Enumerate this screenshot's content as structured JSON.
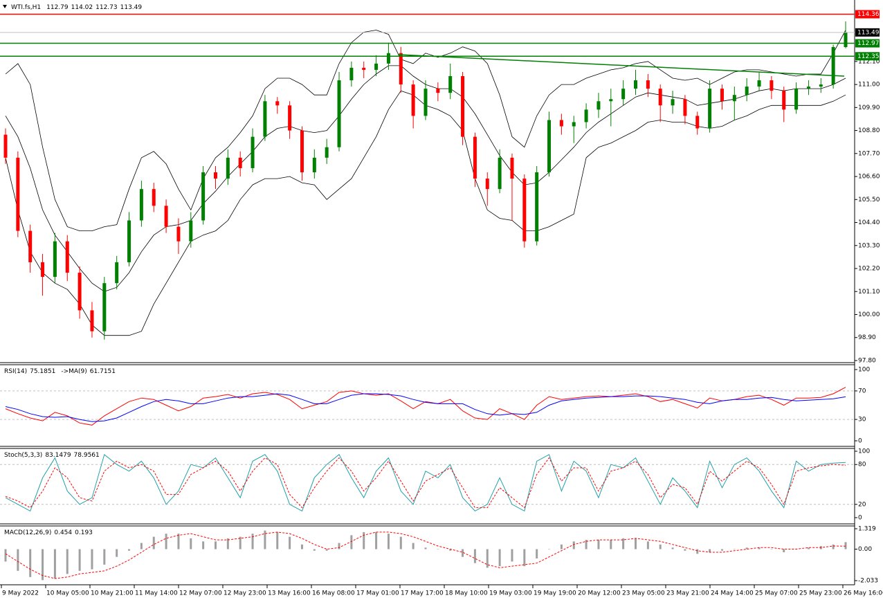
{
  "chart_data": [
    {
      "type": "candlestick",
      "title": "WTI.fs,H1",
      "open": [
        108.6,
        107.5,
        104.0,
        102.5,
        101.8,
        103.5,
        102.0,
        100.2,
        99.2,
        101.5,
        102.5,
        104.5,
        106.0,
        105.2,
        104.2,
        103.5,
        104.5,
        106.8,
        106.5,
        107.5,
        107.0,
        108.5,
        110.2,
        110.0,
        108.8,
        106.8,
        107.5,
        108.0,
        111.2,
        111.8,
        111.7,
        112.0,
        112.5,
        111.0,
        109.5,
        110.8,
        110.6,
        111.4,
        108.5,
        106.5,
        106.0,
        107.5,
        106.5,
        103.5,
        106.8,
        109.3,
        109.0,
        109.2,
        109.8,
        110.2,
        110.3,
        110.8,
        111.2,
        110.8,
        110.0,
        110.3,
        109.5,
        108.9,
        110.8,
        110.2,
        110.5,
        110.9,
        111.2,
        110.7,
        109.8,
        110.8,
        110.9,
        111.0,
        112.79
      ],
      "high": [
        108.9,
        107.8,
        104.3,
        102.9,
        103.9,
        103.8,
        102.3,
        100.6,
        101.8,
        102.8,
        104.9,
        106.4,
        106.3,
        105.5,
        104.6,
        104.9,
        107.1,
        107.1,
        107.9,
        107.8,
        108.9,
        110.5,
        110.4,
        110.2,
        109.0,
        107.9,
        108.4,
        111.6,
        112.1,
        112.1,
        112.4,
        113.0,
        112.8,
        111.2,
        111.2,
        111.1,
        112.0,
        111.6,
        108.7,
        106.8,
        107.9,
        107.7,
        106.7,
        107.1,
        109.7,
        109.6,
        109.5,
        110.1,
        110.6,
        110.8,
        111.2,
        111.7,
        111.5,
        111.0,
        110.7,
        110.5,
        109.7,
        111.2,
        111.0,
        110.9,
        111.3,
        111.6,
        111.4,
        110.9,
        111.1,
        111.2,
        111.3,
        112.9,
        114.02
      ],
      "low": [
        107.2,
        103.7,
        102.0,
        100.9,
        101.5,
        101.6,
        99.8,
        98.9,
        98.8,
        101.2,
        102.3,
        104.2,
        104.9,
        103.9,
        102.9,
        103.2,
        104.3,
        106.0,
        106.2,
        106.6,
        106.8,
        108.3,
        109.6,
        108.4,
        106.4,
        106.5,
        107.2,
        107.8,
        110.9,
        111.3,
        111.4,
        111.7,
        110.6,
        108.9,
        109.3,
        110.2,
        110.3,
        108.1,
        106.1,
        105.2,
        105.8,
        104.5,
        103.2,
        103.3,
        106.6,
        108.6,
        108.2,
        108.9,
        109.4,
        109.0,
        110.0,
        110.5,
        110.4,
        109.2,
        109.6,
        109.1,
        108.6,
        108.7,
        109.8,
        109.3,
        110.2,
        110.7,
        110.3,
        109.2,
        109.6,
        110.5,
        110.6,
        110.8,
        112.73
      ],
      "close": [
        107.5,
        104.0,
        102.5,
        101.8,
        103.5,
        102.0,
        100.2,
        99.2,
        101.5,
        102.5,
        104.5,
        106.0,
        105.2,
        104.2,
        103.5,
        104.5,
        106.8,
        106.5,
        107.5,
        107.0,
        108.5,
        110.2,
        110.0,
        108.8,
        106.8,
        107.5,
        108.0,
        111.2,
        111.8,
        111.7,
        112.0,
        112.5,
        111.0,
        109.5,
        110.8,
        110.6,
        111.4,
        108.5,
        106.5,
        106.0,
        107.5,
        106.5,
        103.5,
        106.8,
        109.3,
        109.0,
        109.2,
        109.8,
        110.2,
        110.3,
        110.8,
        111.2,
        110.8,
        110.0,
        110.3,
        109.5,
        108.9,
        110.8,
        110.2,
        110.5,
        110.9,
        111.2,
        110.7,
        109.8,
        110.8,
        110.9,
        111.0,
        112.79,
        113.49
      ],
      "up_color": "#008000",
      "down_color": "#ff0000",
      "overlays": [
        {
          "color": "#000000",
          "values": [
            111.5,
            112.0,
            111.0,
            108.0,
            105.5,
            104.2,
            104.0,
            104.0,
            104.2,
            104.3,
            106.0,
            107.5,
            107.8,
            107.2,
            106.0,
            105.0,
            106.5,
            107.5,
            108.0,
            108.7,
            109.5,
            110.8,
            111.3,
            111.3,
            111.0,
            110.5,
            110.5,
            112.0,
            113.0,
            113.5,
            113.6,
            113.4,
            112.2,
            112.0,
            112.5,
            112.3,
            112.5,
            112.8,
            112.6,
            112.0,
            110.5,
            108.5,
            108.0,
            109.5,
            110.5,
            111.0,
            111.0,
            111.3,
            111.5,
            111.7,
            111.8,
            112.0,
            112.1,
            111.7,
            111.3,
            111.2,
            111.3,
            111.0,
            111.3,
            111.6,
            111.7,
            111.7,
            111.6,
            111.5,
            111.4,
            111.5,
            111.5,
            112.5,
            113.6
          ]
        },
        {
          "color": "#000000",
          "values": [
            109.5,
            108.5,
            107.0,
            105.0,
            103.8,
            103.0,
            102.2,
            101.5,
            101.1,
            101.3,
            102.0,
            103.0,
            103.8,
            104.2,
            104.3,
            104.5,
            105.3,
            105.9,
            106.6,
            107.2,
            107.8,
            108.5,
            108.9,
            109.0,
            108.8,
            108.7,
            108.8,
            109.5,
            110.3,
            111.0,
            111.5,
            111.9,
            111.9,
            111.4,
            111.0,
            110.8,
            110.8,
            110.4,
            109.6,
            108.6,
            107.6,
            106.8,
            106.2,
            106.3,
            106.8,
            107.4,
            108.0,
            108.7,
            109.2,
            109.6,
            110.0,
            110.4,
            110.6,
            110.5,
            110.4,
            110.3,
            110.0,
            110.1,
            110.2,
            110.3,
            110.5,
            110.7,
            110.8,
            110.7,
            110.8,
            110.8,
            110.8,
            111.0,
            111.3
          ]
        },
        {
          "color": "#000000",
          "values": [
            107.5,
            105.0,
            103.0,
            102.0,
            101.5,
            101.2,
            100.5,
            99.5,
            99.0,
            99.0,
            99.0,
            99.2,
            100.5,
            101.5,
            102.5,
            103.5,
            103.8,
            104.0,
            104.5,
            105.5,
            106.2,
            106.5,
            106.5,
            106.6,
            106.3,
            106.2,
            105.5,
            106.0,
            106.5,
            107.5,
            108.5,
            109.8,
            110.7,
            110.5,
            110.0,
            109.8,
            109.5,
            108.8,
            106.5,
            105.0,
            104.6,
            104.5,
            104.0,
            104.0,
            104.2,
            104.5,
            104.8,
            107.5,
            108.0,
            108.2,
            108.5,
            108.8,
            109.2,
            109.3,
            109.2,
            109.2,
            109.0,
            108.9,
            109.0,
            109.3,
            109.5,
            109.8,
            110.0,
            110.0,
            110.0,
            110.0,
            110.0,
            110.2,
            110.5
          ]
        }
      ],
      "hlines": [
        {
          "value": 114.36,
          "color": "#ff0000"
        },
        {
          "value": 112.97,
          "color": "#008000"
        },
        {
          "value": 112.35,
          "color": "#008000"
        }
      ],
      "trendline": {
        "color": "#008000",
        "values": [
          112.43,
          111.4
        ]
      },
      "ylim": [
        97.7,
        115.04
      ],
      "yticks": [
        {
          "value": 112.1,
          "label": "112.10"
        },
        {
          "value": 111,
          "label": "111.00"
        },
        {
          "value": 109.9,
          "label": "109.90"
        },
        {
          "value": 108.8,
          "label": "108.80"
        },
        {
          "value": 107.7,
          "label": "107.70"
        },
        {
          "value": 106.6,
          "label": "106.60"
        },
        {
          "value": 105.5,
          "label": "105.50"
        },
        {
          "value": 104.4,
          "label": "104.40"
        },
        {
          "value": 103.3,
          "label": "103.30"
        },
        {
          "value": 102.2,
          "label": "102.20"
        },
        {
          "value": 101.1,
          "label": "101.10"
        },
        {
          "value": 100,
          "label": "100.00"
        },
        {
          "value": 98.9,
          "label": "98.90"
        },
        {
          "value": 97.8,
          "label": "97.80"
        }
      ],
      "x_labels": [
        "9 May 2022",
        "10 May 05:00",
        "10 May 21:00",
        "11 May 14:00",
        "12 May 07:00",
        "12 May 23:00",
        "13 May 16:00",
        "16 May 08:00",
        "17 May 01:00",
        "17 May 17:00",
        "18 May 10:00",
        "19 May 03:00",
        "19 May 19:00",
        "20 May 12:00",
        "23 May 05:00",
        "23 May 21:00",
        "24 May 14:00",
        "25 May 07:00",
        "25 May 23:00",
        "26 May 16:00"
      ]
    },
    {
      "type": "line",
      "series": [
        {
          "name": "RSI(14)",
          "color": "#ff0000",
          "values": [
            45,
            38,
            32,
            28,
            40,
            35,
            25,
            22,
            35,
            45,
            55,
            60,
            58,
            50,
            42,
            48,
            60,
            62,
            65,
            60,
            66,
            68,
            65,
            58,
            45,
            50,
            55,
            68,
            70,
            66,
            64,
            66,
            56,
            45,
            55,
            52,
            58,
            42,
            32,
            30,
            45,
            38,
            30,
            50,
            62,
            58,
            60,
            62,
            63,
            62,
            64,
            66,
            62,
            55,
            58,
            52,
            46,
            60,
            56,
            58,
            62,
            64,
            58,
            50,
            60,
            60,
            61,
            66,
            75.1851
          ]
        },
        {
          "name": "->MA(9)",
          "color": "#0000ff",
          "values": [
            48,
            44,
            38,
            34,
            33,
            34,
            30,
            27,
            28,
            32,
            40,
            48,
            55,
            58,
            56,
            52,
            52,
            56,
            60,
            62,
            62,
            64,
            66,
            64,
            58,
            52,
            52,
            58,
            64,
            66,
            66,
            65,
            63,
            58,
            54,
            52,
            52,
            52,
            44,
            38,
            36,
            38,
            37,
            40,
            50,
            56,
            58,
            60,
            61,
            62,
            62,
            63,
            63,
            62,
            60,
            58,
            54,
            52,
            56,
            58,
            58,
            60,
            61,
            58,
            56,
            57,
            58,
            59,
            61.7151
          ]
        }
      ],
      "levels": [
        70,
        30
      ],
      "ylim": [
        -7.8,
        106.8
      ],
      "yticks": [
        100,
        70,
        30,
        0
      ]
    },
    {
      "type": "line",
      "series": [
        {
          "name": "Stoch(5,3,3)",
          "color": "#20a0a8",
          "values": [
            30,
            20,
            10,
            60,
            90,
            40,
            20,
            30,
            95,
            80,
            70,
            85,
            60,
            20,
            40,
            80,
            75,
            90,
            60,
            30,
            85,
            95,
            70,
            20,
            10,
            60,
            80,
            95,
            60,
            30,
            70,
            90,
            40,
            20,
            70,
            60,
            80,
            30,
            10,
            20,
            60,
            20,
            10,
            85,
            95,
            40,
            85,
            70,
            30,
            80,
            75,
            90,
            55,
            20,
            60,
            40,
            15,
            85,
            45,
            80,
            90,
            70,
            40,
            15,
            85,
            70,
            80,
            82,
            83.1479
          ]
        },
        {
          "color": "#ff0000",
          "dash": true,
          "values": [
            32,
            25,
            15,
            40,
            75,
            60,
            30,
            25,
            70,
            85,
            75,
            80,
            70,
            35,
            35,
            65,
            75,
            85,
            70,
            40,
            70,
            90,
            80,
            35,
            15,
            45,
            70,
            90,
            70,
            40,
            60,
            85,
            55,
            25,
            55,
            65,
            75,
            45,
            15,
            15,
            45,
            30,
            15,
            65,
            90,
            55,
            75,
            75,
            40,
            70,
            75,
            85,
            65,
            30,
            50,
            45,
            20,
            70,
            55,
            70,
            85,
            75,
            50,
            20,
            70,
            75,
            78,
            80,
            78.9561
          ]
        }
      ],
      "levels": [
        80,
        20
      ],
      "ylim": [
        -9.4,
        104.2
      ],
      "yticks": [
        100,
        80,
        20,
        0
      ]
    },
    {
      "type": "bar",
      "series": [
        {
          "name": "MACD(12,26,9)",
          "color": "#a0a0a0",
          "values": [
            -0.8,
            -1.4,
            -1.8,
            -2.0,
            -1.9,
            -1.6,
            -1.4,
            -1.3,
            -1.0,
            -0.5,
            -0.1,
            0.4,
            0.8,
            1.0,
            1.0,
            0.7,
            0.5,
            0.5,
            0.7,
            0.8,
            1.0,
            1.2,
            1.1,
            0.8,
            0.3,
            -0.1,
            -0.1,
            0.4,
            0.9,
            1.1,
            1.1,
            1.0,
            0.8,
            0.4,
            0.1,
            0.0,
            -0.1,
            -0.5,
            -0.9,
            -1.2,
            -1.1,
            -0.8,
            -1.1,
            -0.6,
            0.0,
            0.3,
            0.5,
            0.6,
            0.6,
            0.6,
            0.7,
            0.7,
            0.5,
            0.3,
            0.1,
            -0.1,
            -0.3,
            -0.2,
            -0.1,
            0.0,
            0.1,
            0.1,
            0.0,
            -0.2,
            0.0,
            0.1,
            0.2,
            0.3,
            0.454
          ]
        },
        {
          "color": "#ff0000",
          "dash": true,
          "values": [
            -0.3,
            -0.8,
            -1.3,
            -1.7,
            -1.9,
            -1.8,
            -1.6,
            -1.5,
            -1.4,
            -1.1,
            -0.7,
            -0.2,
            0.3,
            0.7,
            0.9,
            1.0,
            0.8,
            0.6,
            0.6,
            0.7,
            0.8,
            1.0,
            1.1,
            1.0,
            0.7,
            0.3,
            0.0,
            0.1,
            0.5,
            0.9,
            1.1,
            1.1,
            1.0,
            0.8,
            0.5,
            0.2,
            0.0,
            -0.2,
            -0.6,
            -1.0,
            -1.2,
            -1.1,
            -1.0,
            -0.9,
            -0.5,
            -0.1,
            0.3,
            0.5,
            0.6,
            0.6,
            0.6,
            0.7,
            0.6,
            0.5,
            0.3,
            0.1,
            -0.1,
            -0.2,
            -0.2,
            -0.1,
            0.0,
            0.1,
            0.1,
            0.0,
            0.0,
            0.1,
            0.1,
            0.2,
            0.193
          ]
        }
      ],
      "ylim": [
        -2.3,
        1.498
      ],
      "yticks": [
        1.319,
        {
          "value": 0,
          "label": "0.00"
        },
        -2.033
      ]
    }
  ]
}
